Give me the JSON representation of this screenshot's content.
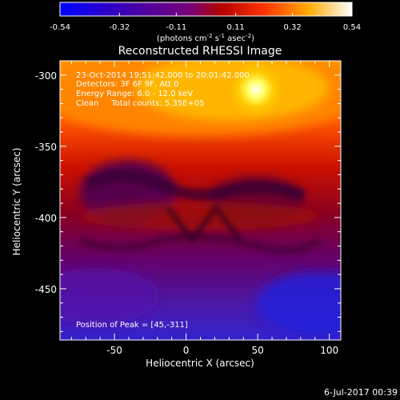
{
  "colorbar": {
    "ticks": [
      "-0.54",
      "-0.32",
      "-0.11",
      "0.11",
      "0.32",
      "0.54"
    ],
    "units_prefix": "(photons cm",
    "units_exp1": "-2",
    "units_mid": " s",
    "units_exp2": "-1",
    "units_suffix_a": " asec",
    "units_exp3": "-2",
    "units_suffix_b": ")"
  },
  "plot": {
    "title": "Reconstructed RHESSI Image",
    "xlabel": "Heliocentric X (arcsec)",
    "ylabel": "Heliocentric Y (arcsec)",
    "x_ticks": [
      "-50",
      "0",
      "50",
      "100"
    ],
    "y_ticks": [
      "-300",
      "-350",
      "-400",
      "-450"
    ],
    "x_range": [
      -88,
      108
    ],
    "y_range": [
      -486,
      -290
    ],
    "annotations": [
      "23-Oct-2014 19:51:42.000 to 20:01:42.000",
      "Detectors: 3F 6F 9F, Att 0",
      "Energy Range: 6.0 - 12.0 keV",
      "Clean     Total counts: 5.35E+05"
    ],
    "peak_label": "Position of Peak = [45,-311]",
    "peak": [
      45,
      -311
    ]
  },
  "footer": {
    "date": "6-Jul-2017 00:39"
  }
}
